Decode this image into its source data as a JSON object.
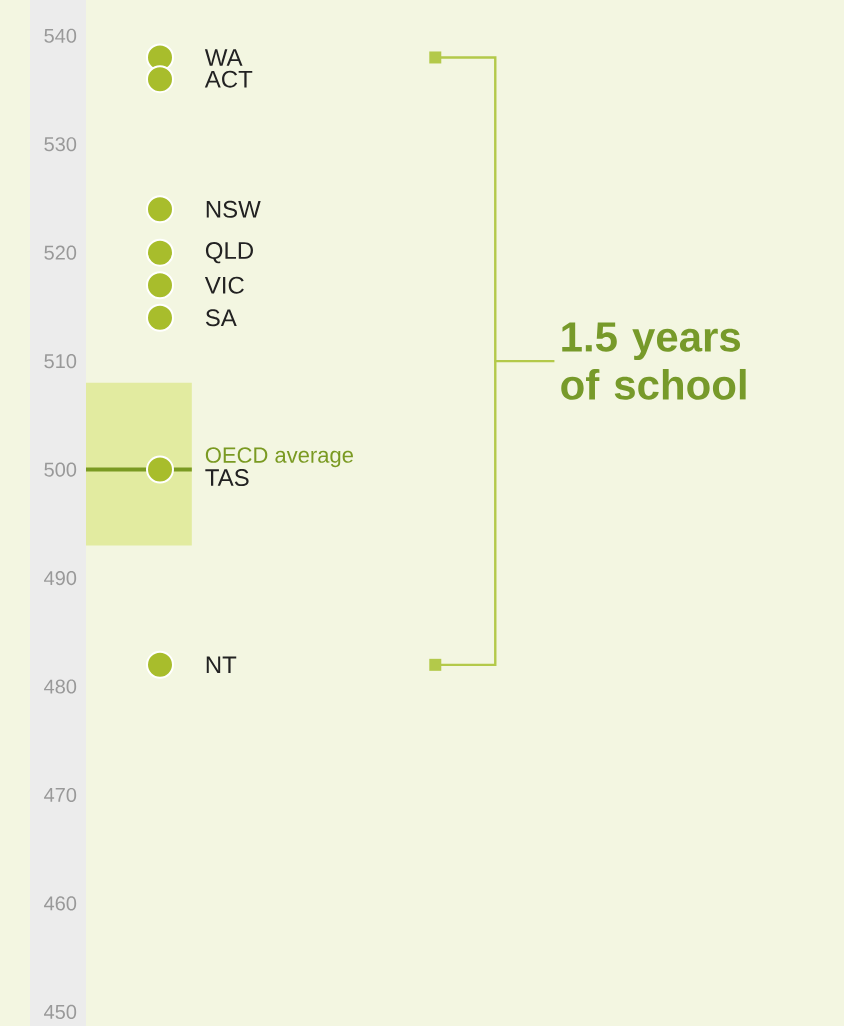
{
  "chart_data": {
    "type": "scatter",
    "categories": [
      null
    ],
    "legend": false,
    "grid": false,
    "ylim": [
      448.7,
      543.3
    ],
    "yticks": [
      450,
      460,
      470,
      480,
      490,
      500,
      510,
      520,
      530,
      540
    ],
    "series": [
      {
        "name": "WA",
        "color": "#a8bd2c",
        "values": [
          538
        ]
      },
      {
        "name": "ACT",
        "color": "#a8bd2c",
        "values": [
          536
        ]
      },
      {
        "name": "NSW",
        "color": "#a8bd2c",
        "values": [
          524
        ]
      },
      {
        "name": "QLD",
        "color": "#a8bd2c",
        "values": [
          520
        ]
      },
      {
        "name": "VIC",
        "color": "#a8bd2c",
        "values": [
          517
        ]
      },
      {
        "name": "SA",
        "color": "#a8bd2c",
        "values": [
          514
        ]
      },
      {
        "name": "TAS",
        "color": "#a8bd2c",
        "values": [
          500
        ]
      },
      {
        "name": "NT",
        "color": "#a8bd2c",
        "values": [
          482
        ]
      }
    ],
    "ref_lines": [
      {
        "axis": "y",
        "value": 500,
        "label": "OECD average",
        "color": "#7a9a22"
      }
    ],
    "bands": [
      {
        "axis": "y",
        "from": 493,
        "to": 508,
        "color": "#e2eba0"
      }
    ],
    "annotations": [
      "1.5 years of school"
    ]
  }
}
